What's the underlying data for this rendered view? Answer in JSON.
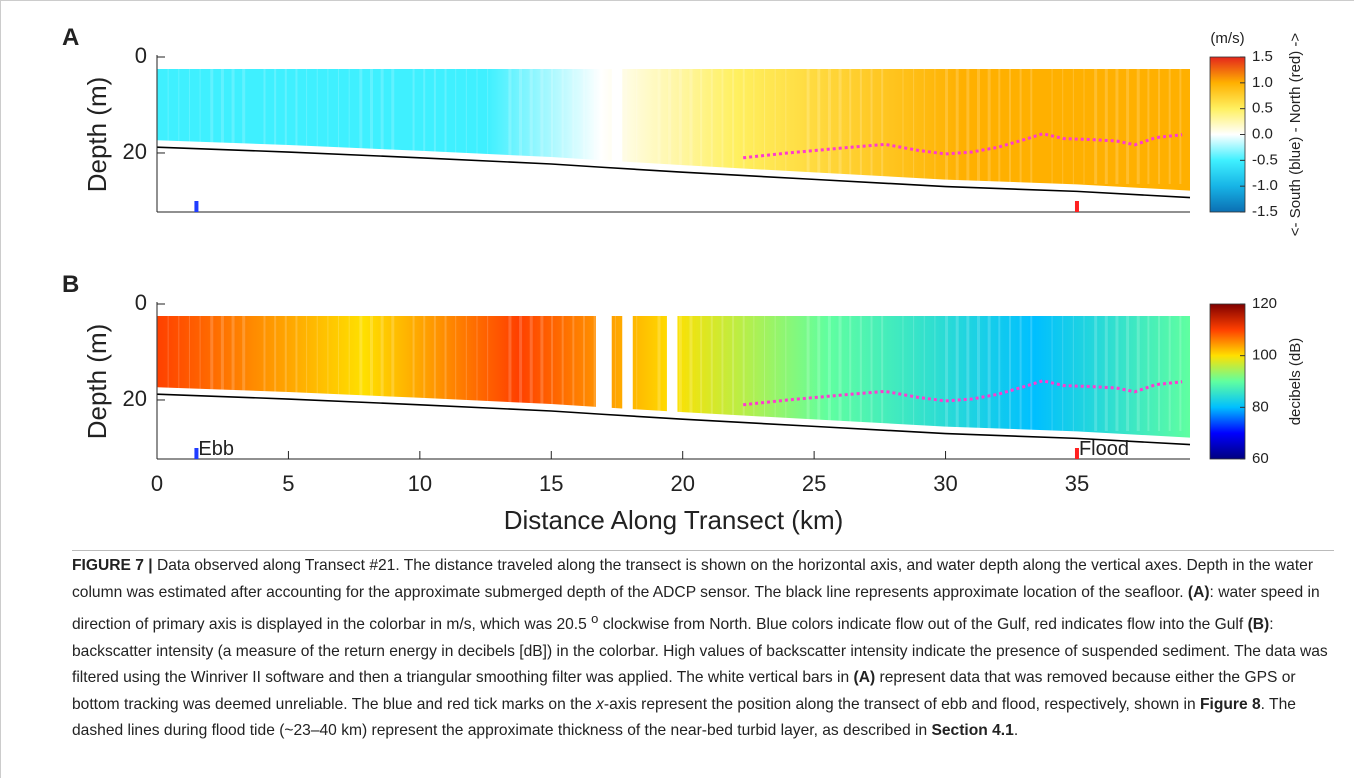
{
  "chart_data": [
    {
      "type": "heatmap",
      "panel_label": "A",
      "ylabel": "Depth (m)",
      "xlim": [
        0,
        39.3
      ],
      "ylim": [
        0,
        32.3
      ],
      "yticks": [
        0,
        20
      ],
      "colorbar": {
        "unit": "(m/s)",
        "label": "<- South (blue) - North (red) ->",
        "lim": [
          -1.5,
          1.5
        ],
        "ticks": [
          -1.5,
          {
            "value": -1,
            "label": "-1.0"
          },
          -0.5,
          {
            "value": 0,
            "label": "0.0"
          },
          0.5,
          {
            "value": 1,
            "label": "1.0"
          },
          1.5
        ],
        "colormap": [
          "#0b6fb3",
          "#17b4e6",
          "#3ff0ff",
          "#ffffff",
          "#fff060",
          "#ffb000",
          "#e4261c"
        ]
      },
      "lines": [
        {
          "color": "#000000",
          "style": "solid",
          "x": [
            0,
            5,
            10,
            15,
            17,
            20,
            25,
            30,
            35,
            39.3
          ],
          "y": [
            18.8,
            19.8,
            21,
            22.3,
            23,
            24,
            25.5,
            27,
            28,
            29.3
          ]
        },
        {
          "color": "#ff3ad0",
          "style": "dotted",
          "x": [
            22.3,
            24,
            26,
            27.7,
            29,
            30,
            31,
            32,
            33,
            33.7,
            34.5,
            35.5,
            36.5,
            37.2,
            38,
            39
          ],
          "y": [
            21,
            20,
            19,
            18.2,
            19.5,
            20.2,
            19.8,
            18.8,
            17.2,
            16,
            17,
            17.2,
            17.5,
            18.3,
            16.8,
            16.2
          ]
        }
      ],
      "markers": [
        {
          "x": 1.5,
          "color": "#1f3cff"
        },
        {
          "x": 35,
          "color": "#ff2020"
        }
      ]
    },
    {
      "type": "heatmap",
      "panel_label": "B",
      "ylabel": "Depth (m)",
      "xlabel": "Distance Along Transect (km)",
      "xlim": [
        0,
        39.3
      ],
      "ylim": [
        0,
        32.3
      ],
      "xticks": [
        0,
        5,
        10,
        15,
        20,
        25,
        30,
        35
      ],
      "yticks": [
        0,
        20
      ],
      "colorbar": {
        "label": "decibels (dB)",
        "lim": [
          60,
          120
        ],
        "ticks": [
          60,
          80,
          100,
          120
        ],
        "colormap": [
          "#00007f",
          "#0000ff",
          "#00bfff",
          "#60ffa0",
          "#ffe000",
          "#ff4000",
          "#7f0000"
        ]
      },
      "lines": [
        {
          "color": "#000000",
          "style": "solid",
          "x": [
            0,
            5,
            10,
            15,
            17,
            20,
            25,
            30,
            35,
            39.3
          ],
          "y": [
            18.8,
            19.8,
            21,
            22.3,
            23,
            24,
            25.5,
            27,
            28,
            29.3
          ]
        },
        {
          "color": "#ff3ad0",
          "style": "dotted",
          "x": [
            22.3,
            24,
            26,
            27.7,
            29,
            30,
            31,
            32,
            33,
            33.7,
            34.5,
            35.5,
            36.5,
            37.2,
            38,
            39
          ],
          "y": [
            21,
            20,
            19,
            18.2,
            19.5,
            20.2,
            19.8,
            18.8,
            17.2,
            16,
            17,
            17.2,
            17.5,
            18.3,
            16.8,
            16.2
          ]
        }
      ],
      "markers": [
        {
          "x": 1.5,
          "color": "#1f3cff",
          "label": "Ebb"
        },
        {
          "x": 35,
          "color": "#ff2020",
          "label": "Flood"
        }
      ]
    }
  ],
  "caption": {
    "parts": [
      "FIGURE 7 |",
      " Data observed along Transect #21. The distance traveled along the transect is shown on the horizontal axis, and water depth along the vertical axes. Depth in the water column was estimated after accounting for the approximate submerged depth of the ADCP sensor. The black line represents approximate location of the seafloor. ",
      "(A)",
      ": water speed in direction of primary axis is displayed in the colorbar in m/s, which was 20.5 ",
      "o",
      " clockwise from North. Blue colors indicate flow out of the Gulf, red indicates flow into the Gulf ",
      "(B)",
      ": backscatter intensity (a measure of the return energy in decibels [dB]) in the colorbar. High values of backscatter intensity indicate the presence of suspended sediment. The data was filtered using the Winriver II software and then a triangular smoothing filter was applied. The white vertical bars in ",
      "(A)",
      " represent data that was removed because either the GPS or bottom tracking was deemed unreliable. The blue and red tick marks on the ",
      "x",
      "-axis represent the position along the transect of ebb and flood, respectively, shown in ",
      "Figure 8",
      ". The dashed lines during flood tide (~23–40 km) represent the approximate thickness of the near-bed turbid layer, as described in ",
      "Section 4.1",
      "."
    ]
  }
}
